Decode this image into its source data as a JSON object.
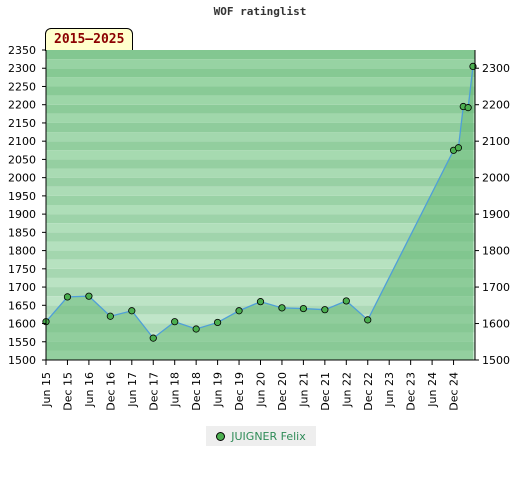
{
  "chart_data": {
    "type": "area",
    "title": "WOF ratinglist",
    "period_label": "2015–2025",
    "ylim": [
      1500,
      2350
    ],
    "y_ticks": [
      1500,
      1550,
      1600,
      1650,
      1700,
      1750,
      1800,
      1850,
      1900,
      1950,
      2000,
      2050,
      2100,
      2150,
      2200,
      2250,
      2300,
      2350
    ],
    "y_ticks_right": [
      1500,
      1600,
      1700,
      1800,
      1900,
      2000,
      2100,
      2200,
      2300
    ],
    "x_ticks": [
      "Jun 15",
      "Dec 15",
      "Jun 16",
      "Dec 16",
      "Jun 17",
      "Dec 17",
      "Jun 18",
      "Dec 18",
      "Jun 19",
      "Dec 19",
      "Jun 20",
      "Dec 20",
      "Jun 21",
      "Dec 21",
      "Jun 22",
      "Dec 22",
      "Jun 23",
      "Dec 23",
      "Jun 24",
      "Dec 24"
    ],
    "series": [
      {
        "name": "JUIGNER Felix",
        "color": "#4caf50",
        "points": [
          {
            "x": "Jun 15",
            "y": 1605
          },
          {
            "x": "Dec 15",
            "y": 1673
          },
          {
            "x": "Jun 16",
            "y": 1675
          },
          {
            "x": "Dec 16",
            "y": 1620
          },
          {
            "x": "Jun 17",
            "y": 1635
          },
          {
            "x": "Dec 17",
            "y": 1560
          },
          {
            "x": "Jun 18",
            "y": 1605
          },
          {
            "x": "Dec 18",
            "y": 1585
          },
          {
            "x": "Jun 19",
            "y": 1603
          },
          {
            "x": "Dec 19",
            "y": 1635
          },
          {
            "x": "Jun 20",
            "y": 1660
          },
          {
            "x": "Dec 20",
            "y": 1643
          },
          {
            "x": "Jun 21",
            "y": 1641
          },
          {
            "x": "Dec 21",
            "y": 1638
          },
          {
            "x": "Jun 22",
            "y": 1662
          },
          {
            "x": "Dec 22",
            "y": 1610
          },
          {
            "x": "Dec 24",
            "y": 2075
          },
          {
            "x": "Dec 24",
            "y": 2082
          },
          {
            "x": "Dec 24",
            "y": 2195
          },
          {
            "x": "Dec 24",
            "y": 2192
          },
          {
            "x": "Dec 24",
            "y": 2305
          }
        ]
      }
    ],
    "grid": true,
    "legend_position": "bottom"
  }
}
